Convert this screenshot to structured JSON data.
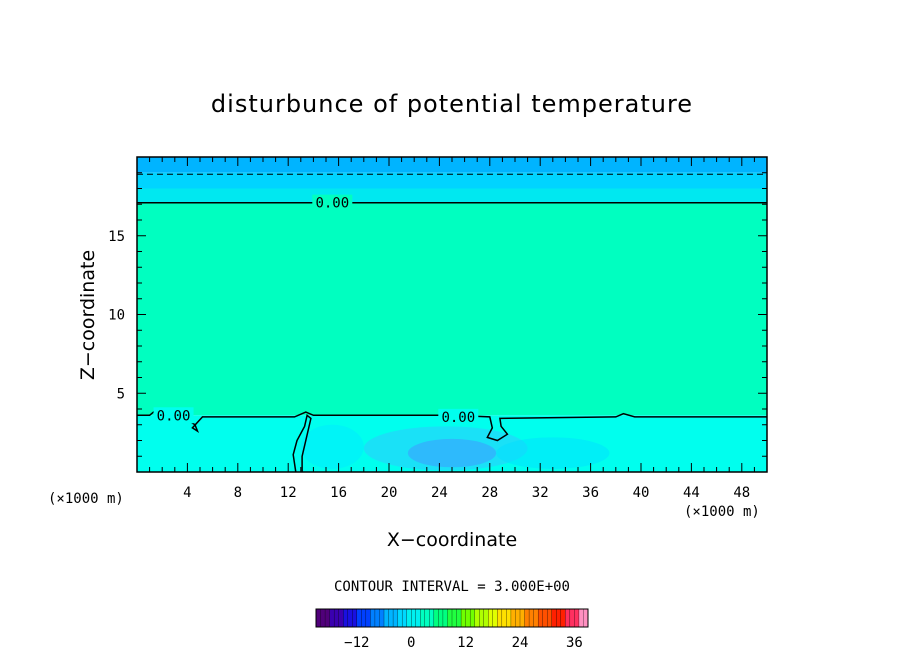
{
  "chart_data": {
    "type": "heatmap",
    "title": "disturbunce of potential temperature",
    "xlabel": "X−coordinate",
    "ylabel": "Z−coordinate",
    "x_unit": "(×1000 m)",
    "y_unit": "(×1000 m)",
    "xlim": [
      0,
      50
    ],
    "ylim": [
      0,
      20
    ],
    "x_ticks": [
      4,
      8,
      12,
      16,
      20,
      24,
      28,
      32,
      36,
      40,
      44,
      48
    ],
    "y_ticks": [
      5,
      10,
      15
    ],
    "contour_interval_text": "CONTOUR INTERVAL = 3.000E+00",
    "contour_interval": 3,
    "contour_labels": [
      {
        "x": 15.5,
        "z": 17.1,
        "text": "0.00"
      },
      {
        "x": 2.9,
        "z": 3.6,
        "text": "0.00"
      },
      {
        "x": 25.5,
        "z": 3.5,
        "text": "0.00"
      }
    ],
    "zero_contours": [
      [
        [
          0,
          17.1
        ],
        [
          50,
          17.1
        ]
      ],
      [
        [
          0,
          3.6
        ],
        [
          1,
          3.6
        ],
        [
          1.6,
          4.0
        ],
        [
          2.4,
          3.7
        ],
        [
          3.6,
          3.5
        ],
        [
          4.6,
          3.0
        ],
        [
          4.8,
          2.6
        ],
        [
          4.4,
          2.8
        ],
        [
          5.2,
          3.5
        ],
        [
          12.5,
          3.5
        ],
        [
          13.4,
          3.8
        ],
        [
          14,
          3.6
        ],
        [
          18,
          3.6
        ],
        [
          23,
          3.6
        ],
        [
          25,
          3.6
        ],
        [
          28,
          3.5
        ],
        [
          28.2,
          2.8
        ],
        [
          27.8,
          2.2
        ],
        [
          28.6,
          2.0
        ],
        [
          29.4,
          2.4
        ],
        [
          28.9,
          2.9
        ],
        [
          28.8,
          3.4
        ],
        [
          38,
          3.5
        ],
        [
          38.6,
          3.7
        ],
        [
          39.5,
          3.5
        ],
        [
          48,
          3.5
        ],
        [
          50,
          3.5
        ]
      ],
      [
        [
          12.6,
          0
        ],
        [
          12.4,
          1.1
        ],
        [
          12.7,
          2.0
        ],
        [
          13.3,
          2.9
        ],
        [
          13.5,
          3.6
        ],
        [
          13.8,
          3.4
        ],
        [
          13.4,
          2.0
        ],
        [
          13.1,
          1.0
        ],
        [
          13.1,
          0
        ]
      ]
    ],
    "dashed_contours": [
      [
        [
          0,
          18.9
        ],
        [
          50,
          18.9
        ]
      ]
    ],
    "field_bands": [
      {
        "z_from": 19.0,
        "z_to": 20.0,
        "value": -7.5,
        "color": "#00b4ff"
      },
      {
        "z_from": 18.0,
        "z_to": 19.0,
        "value": -4.5,
        "color": "#00d4ff"
      },
      {
        "z_from": 17.1,
        "z_to": 18.0,
        "value": -1.5,
        "color": "#00e8f0"
      },
      {
        "z_from": 3.6,
        "z_to": 17.1,
        "value": 1.0,
        "color": "#00ffc0"
      },
      {
        "z_from": 0.0,
        "z_to": 3.6,
        "value": -1.5,
        "color": "#00ffee"
      }
    ],
    "cold_pool_patches": [
      {
        "cx": 24.5,
        "cz": 1.5,
        "rx": 6.5,
        "rz": 1.4,
        "color": "#30c8ff",
        "opacity": 0.55
      },
      {
        "cx": 25.0,
        "cz": 1.2,
        "rx": 3.5,
        "rz": 0.9,
        "color": "#3ca0ff",
        "opacity": 0.6
      },
      {
        "cx": 33.0,
        "cz": 1.2,
        "rx": 4.5,
        "rz": 1.0,
        "color": "#00e0ff",
        "opacity": 0.5
      },
      {
        "cx": 15.5,
        "cz": 1.6,
        "rx": 2.5,
        "rz": 1.4,
        "color": "#00eaff",
        "opacity": 0.5
      }
    ],
    "colorbar": {
      "min": -21,
      "max": 39,
      "tick_values": [
        -12,
        0,
        12,
        24,
        36
      ],
      "tick_labels": [
        "−12",
        "0",
        "12",
        "24",
        "36"
      ],
      "colors": [
        "#50007a",
        "#3a00b0",
        "#1a10e0",
        "#0040ff",
        "#0080ff",
        "#00b4ff",
        "#00d8ff",
        "#00f0f0",
        "#00ffc0",
        "#00ff80",
        "#20ff40",
        "#70ff00",
        "#b0ff00",
        "#e0ff00",
        "#ffe000",
        "#ffb000",
        "#ff8000",
        "#ff5000",
        "#ff2000",
        "#ff3060",
        "#ff90c0"
      ]
    }
  }
}
